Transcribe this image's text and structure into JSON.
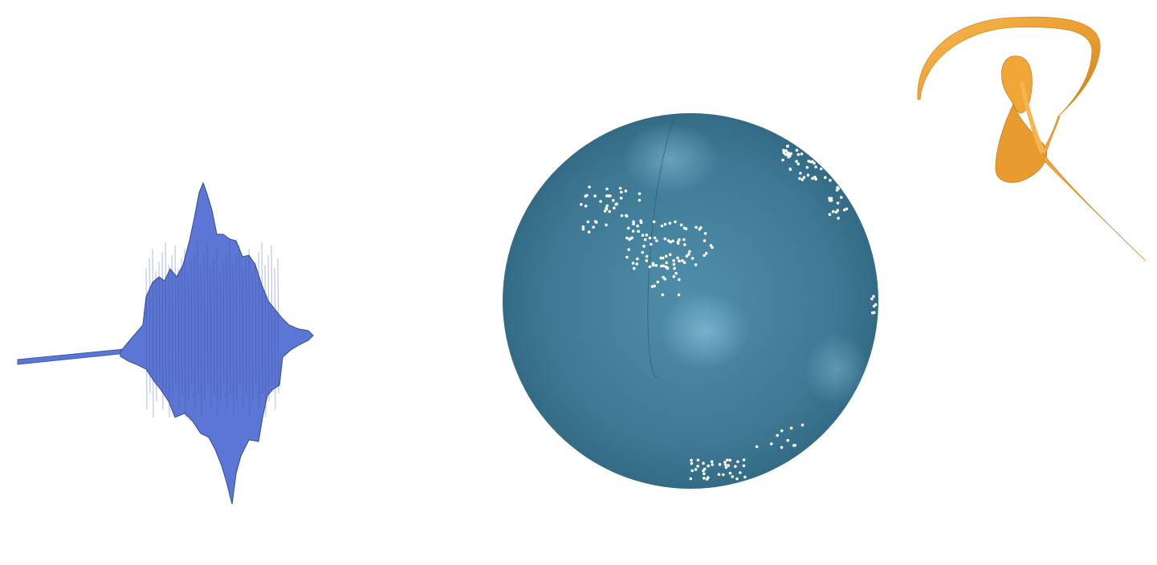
{
  "scene": {
    "background": "#ffffff",
    "objects": [
      {
        "name": "waveform-ribbon",
        "color": "#5470d0",
        "edge_color": "#3a52a8",
        "description_shape": "3d-seismogram-ribbon"
      },
      {
        "name": "globe-with-points",
        "color": "#3f7a94",
        "point_color": "#ffffff",
        "description_shape": "shaded-sphere"
      },
      {
        "name": "twisted-tube",
        "color": "#f0a63a",
        "description_shape": "twisted-knot-ribbon"
      }
    ]
  }
}
